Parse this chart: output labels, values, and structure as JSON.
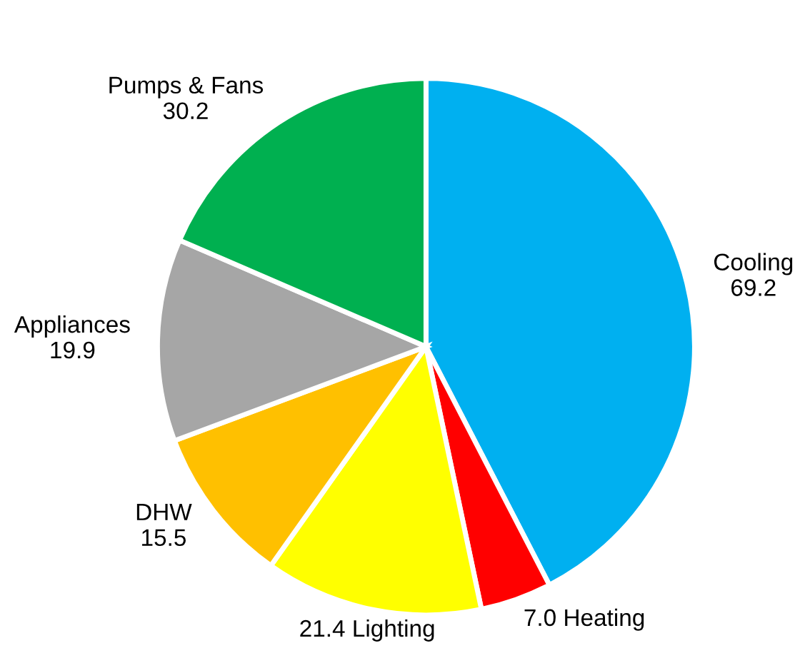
{
  "chart_data": {
    "type": "pie",
    "categories": [
      "Cooling",
      "Heating",
      "Lighting",
      "DHW",
      "Appliances",
      "Pumps & Fans"
    ],
    "values": [
      69.2,
      7.0,
      21.4,
      15.5,
      19.9,
      30.2
    ],
    "value_labels": [
      "69.2",
      "7.0",
      "21.4",
      "15.5",
      "19.9",
      "30.2"
    ],
    "colors": [
      "#00b0f0",
      "#ff0000",
      "#ffff00",
      "#ffc000",
      "#a6a6a6",
      "#00b050"
    ],
    "legend": false
  }
}
